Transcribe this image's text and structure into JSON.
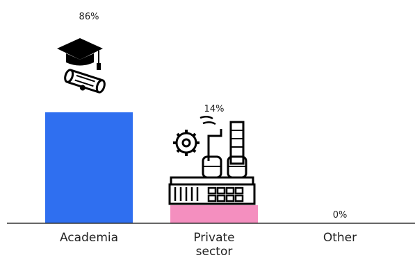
{
  "chart_data": {
    "type": "bar",
    "categories": [
      "Academia",
      "Private sector",
      "Other"
    ],
    "category_lines": [
      [
        "Academia"
      ],
      [
        "Private",
        "sector"
      ],
      [
        "Other"
      ]
    ],
    "values": [
      86,
      14,
      0
    ],
    "value_labels": [
      "86%",
      "14%",
      "0%"
    ],
    "ylim": [
      0,
      100
    ],
    "colors": [
      "#2f6ff0",
      "#f48fbf",
      "#9aa5b8"
    ],
    "icons": [
      "graduation-cap-diploma-icon",
      "factory-icon",
      ""
    ],
    "grid": false,
    "legend": "none",
    "title": "",
    "xlabel": "",
    "ylabel": ""
  }
}
